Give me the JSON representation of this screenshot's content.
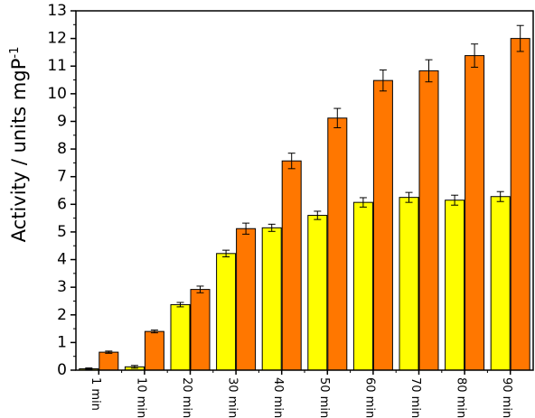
{
  "chart_data": {
    "type": "bar",
    "ylabel": "Activity / units mgP",
    "ylabel_superscript": "-1",
    "ylim": [
      0,
      13
    ],
    "yticks": [
      0,
      1,
      2,
      3,
      4,
      5,
      6,
      7,
      8,
      9,
      10,
      11,
      12,
      13
    ],
    "categories": [
      "1 min",
      "10 min",
      "20 min",
      "30 min",
      "40 min",
      "50 min",
      "60 min",
      "70 min",
      "80 min",
      "90 min"
    ],
    "series": [
      {
        "color": "#ffff00",
        "values": [
          0.05,
          0.12,
          2.37,
          4.22,
          5.15,
          5.6,
          6.07,
          6.25,
          6.15,
          6.28
        ],
        "errors": [
          0.03,
          0.05,
          0.08,
          0.12,
          0.13,
          0.15,
          0.17,
          0.18,
          0.18,
          0.18
        ]
      },
      {
        "color": "#ff7700",
        "values": [
          0.65,
          1.4,
          2.92,
          5.12,
          7.57,
          9.12,
          10.48,
          10.83,
          11.38,
          12.0
        ],
        "errors": [
          0.04,
          0.05,
          0.12,
          0.2,
          0.28,
          0.35,
          0.38,
          0.4,
          0.42,
          0.47
        ]
      }
    ],
    "grid": false,
    "legend": "none"
  }
}
